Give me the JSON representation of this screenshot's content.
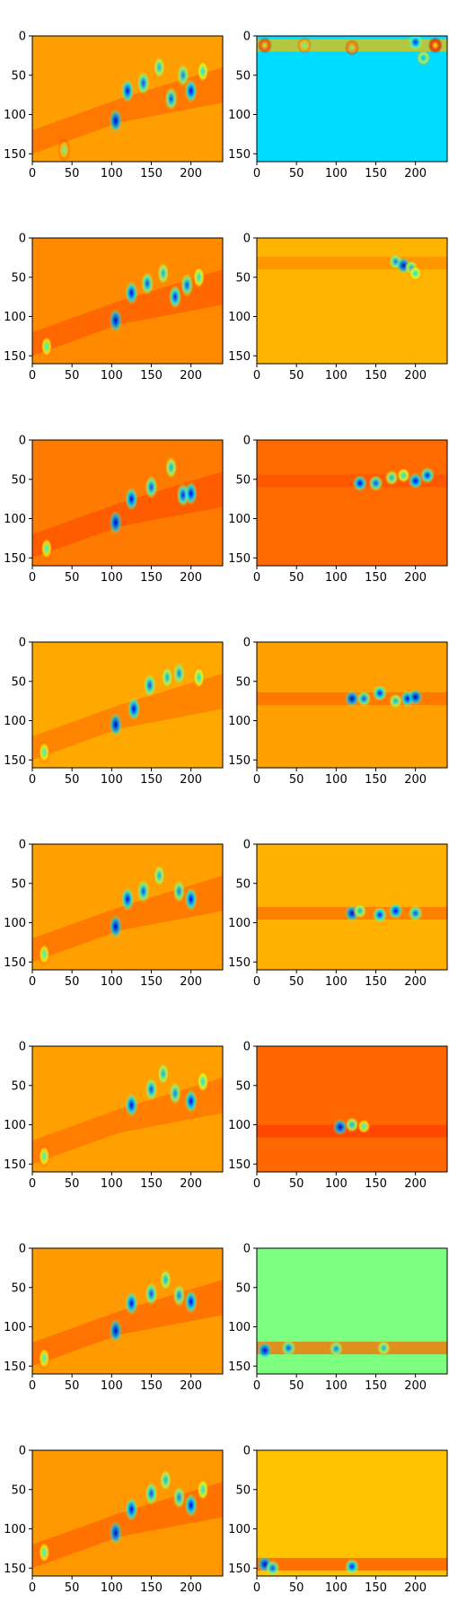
{
  "chart_data": {
    "type": "heatmap",
    "colormap": "jet",
    "layout": {
      "rows": 8,
      "cols": 2
    },
    "x_ticks": [
      "0",
      "50",
      "100",
      "150",
      "200"
    ],
    "y_ticks": [
      "0",
      "50",
      "100",
      "150"
    ],
    "x_tick_values": [
      0,
      50,
      100,
      150,
      200
    ],
    "y_tick_values": [
      0,
      50,
      100,
      150
    ],
    "xlim": [
      0,
      240
    ],
    "ylim": [
      160,
      0
    ],
    "left_panels": [
      {
        "base": "#ff9e00",
        "band": "#ff5a00",
        "blobs": [
          [
            40,
            145,
            0.45
          ],
          [
            105,
            108,
            0.05
          ],
          [
            120,
            70,
            0.1
          ],
          [
            140,
            60,
            0.2
          ],
          [
            160,
            40,
            0.3
          ],
          [
            175,
            80,
            0.2
          ],
          [
            190,
            50,
            0.25
          ],
          [
            200,
            70,
            0.1
          ],
          [
            215,
            45,
            0.35
          ]
        ]
      },
      {
        "base": "#ff8a00",
        "band": "#ff4d00",
        "blobs": [
          [
            18,
            138,
            0.4
          ],
          [
            105,
            105,
            0.05
          ],
          [
            125,
            70,
            0.1
          ],
          [
            145,
            58,
            0.2
          ],
          [
            165,
            45,
            0.3
          ],
          [
            180,
            75,
            0.15
          ],
          [
            195,
            60,
            0.2
          ],
          [
            210,
            50,
            0.35
          ]
        ]
      },
      {
        "base": "#ff7a00",
        "band": "#ff4400",
        "blobs": [
          [
            18,
            138,
            0.4
          ],
          [
            105,
            105,
            0.05
          ],
          [
            125,
            75,
            0.1
          ],
          [
            150,
            60,
            0.2
          ],
          [
            175,
            35,
            0.3
          ],
          [
            190,
            70,
            0.15
          ],
          [
            200,
            68,
            0.1
          ]
        ]
      },
      {
        "base": "#ffa800",
        "band": "#ff6600",
        "blobs": [
          [
            15,
            140,
            0.4
          ],
          [
            105,
            105,
            0.05
          ],
          [
            128,
            85,
            0.1
          ],
          [
            148,
            55,
            0.2
          ],
          [
            170,
            45,
            0.3
          ],
          [
            185,
            40,
            0.25
          ],
          [
            210,
            45,
            0.35
          ]
        ]
      },
      {
        "base": "#ffa000",
        "band": "#ff5c00",
        "blobs": [
          [
            15,
            140,
            0.4
          ],
          [
            105,
            105,
            0.05
          ],
          [
            120,
            70,
            0.1
          ],
          [
            140,
            60,
            0.2
          ],
          [
            160,
            40,
            0.3
          ],
          [
            185,
            60,
            0.25
          ],
          [
            200,
            70,
            0.1
          ]
        ]
      },
      {
        "base": "#ffa000",
        "band": "#ff6000",
        "blobs": [
          [
            15,
            140,
            0.4
          ],
          [
            125,
            75,
            0.1
          ],
          [
            150,
            55,
            0.2
          ],
          [
            165,
            35,
            0.3
          ],
          [
            180,
            60,
            0.25
          ],
          [
            200,
            70,
            0.1
          ],
          [
            215,
            45,
            0.35
          ]
        ]
      },
      {
        "base": "#ff9a00",
        "band": "#ff5600",
        "blobs": [
          [
            15,
            140,
            0.4
          ],
          [
            105,
            105,
            0.05
          ],
          [
            125,
            70,
            0.1
          ],
          [
            150,
            58,
            0.2
          ],
          [
            168,
            40,
            0.3
          ],
          [
            185,
            60,
            0.25
          ],
          [
            200,
            68,
            0.1
          ]
        ]
      },
      {
        "base": "#ff9800",
        "band": "#ff5400",
        "blobs": [
          [
            15,
            130,
            0.4
          ],
          [
            105,
            105,
            0.05
          ],
          [
            125,
            75,
            0.1
          ],
          [
            150,
            55,
            0.2
          ],
          [
            168,
            38,
            0.3
          ],
          [
            185,
            60,
            0.25
          ],
          [
            200,
            70,
            0.1
          ],
          [
            215,
            50,
            0.35
          ]
        ]
      }
    ],
    "right_panels": [
      {
        "base": "#00dcff",
        "band_y": 12,
        "band_color": "#f0c000",
        "blobs": [
          [
            10,
            12,
            0.55
          ],
          [
            60,
            12,
            0.45
          ],
          [
            120,
            15,
            0.5
          ],
          [
            200,
            8,
            0.15
          ],
          [
            210,
            28,
            0.3
          ],
          [
            225,
            12,
            0.6
          ]
        ]
      },
      {
        "base": "#ffb400",
        "band_y": 32,
        "band_color": "#ff8c00",
        "blobs": [
          [
            175,
            30,
            0.25
          ],
          [
            185,
            35,
            0.05
          ],
          [
            195,
            38,
            0.3
          ],
          [
            200,
            45,
            0.35
          ]
        ]
      },
      {
        "base": "#ff6a00",
        "band_y": 52,
        "band_color": "#ff5000",
        "blobs": [
          [
            130,
            55,
            0.1
          ],
          [
            150,
            55,
            0.2
          ],
          [
            170,
            48,
            0.3
          ],
          [
            185,
            45,
            0.35
          ],
          [
            200,
            52,
            0.1
          ],
          [
            215,
            45,
            0.15
          ]
        ]
      },
      {
        "base": "#ffa000",
        "band_y": 72,
        "band_color": "#ff6c00",
        "blobs": [
          [
            120,
            72,
            0.05
          ],
          [
            135,
            72,
            0.2
          ],
          [
            155,
            65,
            0.15
          ],
          [
            175,
            75,
            0.3
          ],
          [
            190,
            72,
            0.1
          ],
          [
            200,
            70,
            0.05
          ]
        ]
      },
      {
        "base": "#ffb000",
        "band_y": 88,
        "band_color": "#ff7000",
        "blobs": [
          [
            120,
            88,
            0.05
          ],
          [
            130,
            85,
            0.3
          ],
          [
            155,
            90,
            0.15
          ],
          [
            175,
            85,
            0.1
          ],
          [
            200,
            88,
            0.2
          ]
        ]
      },
      {
        "base": "#ff6800",
        "band_y": 108,
        "band_color": "#ff3c00",
        "blobs": [
          [
            105,
            103,
            0.05
          ],
          [
            120,
            100,
            0.3
          ],
          [
            135,
            102,
            0.4
          ]
        ]
      },
      {
        "base": "#7cff80",
        "band_y": 127,
        "band_color": "#ff6a00",
        "blobs": [
          [
            10,
            130,
            0.05
          ],
          [
            40,
            127,
            0.2
          ],
          [
            100,
            128,
            0.25
          ],
          [
            160,
            127,
            0.3
          ]
        ]
      },
      {
        "base": "#ffc400",
        "band_y": 145,
        "band_color": "#ff5200",
        "blobs": [
          [
            10,
            145,
            0.05
          ],
          [
            20,
            150,
            0.2
          ],
          [
            120,
            148,
            0.15
          ]
        ]
      }
    ]
  }
}
